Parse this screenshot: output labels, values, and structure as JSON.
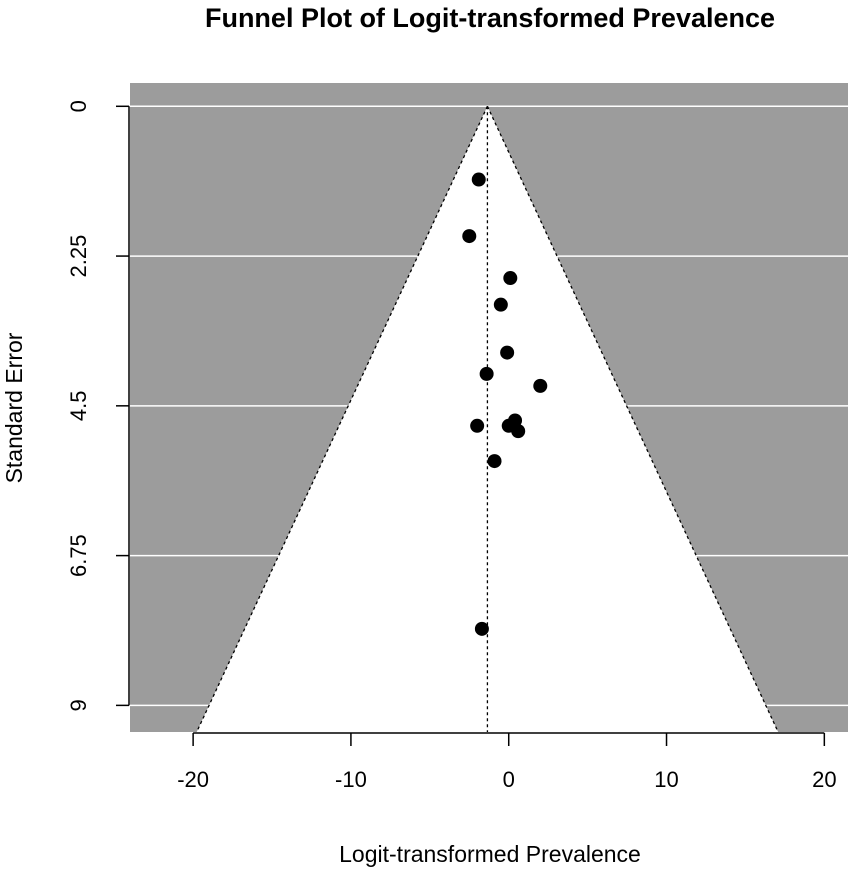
{
  "chart_data": {
    "type": "scatter",
    "title": "Funnel Plot of Logit-transformed Prevalence",
    "xlabel": "Logit-transformed Prevalence",
    "ylabel": "Standard Error",
    "xlim": [
      -24,
      21.5
    ],
    "ylim": [
      9.4,
      -0.35
    ],
    "x_ticks": [
      -20,
      -10,
      0,
      10,
      20
    ],
    "x_tick_labels": [
      "-20",
      "-10",
      "0",
      "10",
      "20"
    ],
    "y_ticks": [
      0,
      2.25,
      4.5,
      6.75,
      9
    ],
    "y_tick_labels": [
      "0",
      "2.25",
      "4.5",
      "6.75",
      "9"
    ],
    "y_reversed": true,
    "grid": true,
    "pooled_estimate": -1.35,
    "funnel_z": 1.96,
    "colors": {
      "background_region": "#9c9c9c",
      "funnel_interior": "#ffffff",
      "grid": "#ffffff",
      "points": "#000000",
      "lines": "#000000"
    },
    "points": [
      {
        "x": -1.9,
        "y": 1.1
      },
      {
        "x": -2.5,
        "y": 1.95
      },
      {
        "x": 0.1,
        "y": 2.58
      },
      {
        "x": -0.5,
        "y": 2.98
      },
      {
        "x": -0.1,
        "y": 3.7
      },
      {
        "x": -1.4,
        "y": 4.02
      },
      {
        "x": 2.0,
        "y": 4.2
      },
      {
        "x": -2.0,
        "y": 4.8
      },
      {
        "x": 0.0,
        "y": 4.8
      },
      {
        "x": 0.4,
        "y": 4.72
      },
      {
        "x": 0.6,
        "y": 4.88
      },
      {
        "x": -0.9,
        "y": 5.33
      },
      {
        "x": -1.7,
        "y": 7.85
      }
    ]
  }
}
